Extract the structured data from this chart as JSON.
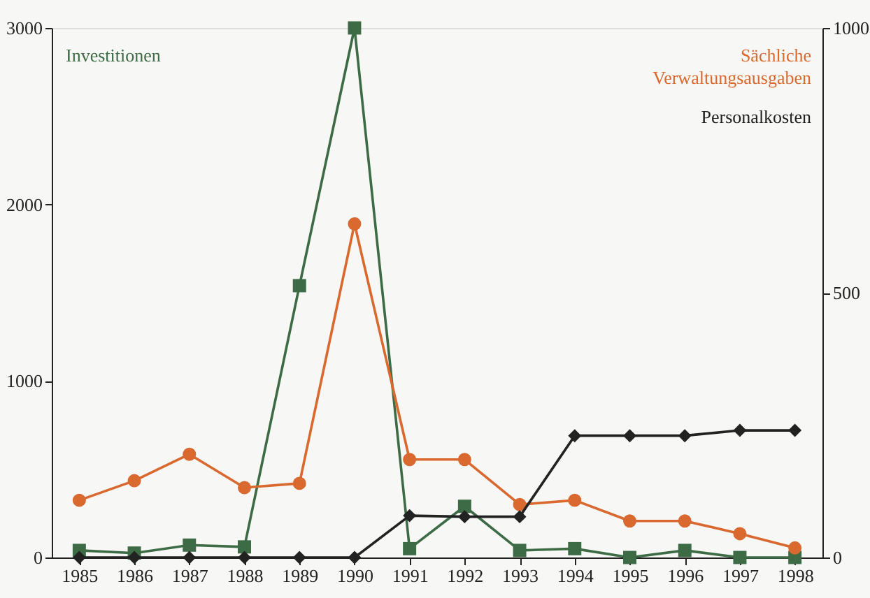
{
  "chart_data": {
    "type": "line",
    "categories": [
      "1985",
      "1986",
      "1987",
      "1988",
      "1989",
      "1990",
      "1991",
      "1992",
      "1993",
      "1994",
      "1995",
      "1996",
      "1997",
      "1998"
    ],
    "series": [
      {
        "name": "Investitionen",
        "color": "#3d6b45",
        "marker": "square",
        "axis": "y",
        "values": [
          40,
          25,
          70,
          60,
          1540,
          3000,
          50,
          290,
          40,
          50,
          0,
          40,
          0,
          0
        ]
      },
      {
        "name": "Sächliche Verwaltungsausgaben",
        "color": "#d9692e",
        "marker": "circle",
        "axis": "y2",
        "values": [
          108,
          145,
          195,
          132,
          140,
          630,
          185,
          185,
          100,
          108,
          69,
          69,
          45,
          18
        ]
      },
      {
        "name": "Personalkosten",
        "color": "#222222",
        "marker": "diamond",
        "axis": "y2",
        "values": [
          0,
          0,
          0,
          0,
          0,
          0,
          79,
          77,
          77,
          230,
          230,
          230,
          240,
          240
        ]
      }
    ],
    "ylim": [
      0,
      3000
    ],
    "yticks": [
      0,
      1000,
      2000,
      3000
    ],
    "y2lim": [
      0,
      1000
    ],
    "y2ticks": [
      0,
      500,
      1000
    ],
    "grid": false,
    "line_style": "solid"
  }
}
